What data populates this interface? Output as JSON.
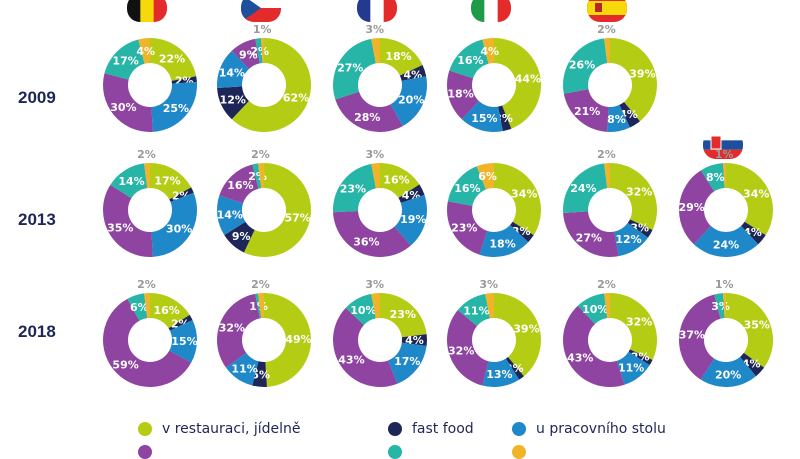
{
  "chart_data": {
    "type": "donut",
    "series_names": [
      "v restauraci, jídelně",
      "fast food",
      "u pracovního stolu",
      "",
      "",
      ""
    ],
    "colors": [
      "#b5cc14",
      "#1d2657",
      "#1e88c9",
      "#8e44a0",
      "#26b5a6",
      "#f0b429"
    ],
    "countries": [
      "belgium",
      "czech-republic",
      "france",
      "italy",
      "spain",
      "slovakia"
    ],
    "rows": [
      {
        "year": "2009",
        "charts": [
          [
            22,
            2,
            25,
            30,
            17,
            4
          ],
          [
            62,
            12,
            14,
            9,
            2,
            1
          ],
          [
            18,
            4,
            20,
            28,
            27,
            3
          ],
          [
            44,
            3,
            15,
            18,
            16,
            4
          ],
          [
            39,
            4,
            8,
            21,
            26,
            2
          ],
          null
        ]
      },
      {
        "year": "2013",
        "charts": [
          [
            17,
            2,
            30,
            35,
            14,
            2
          ],
          [
            57,
            9,
            14,
            16,
            2,
            2
          ],
          [
            16,
            4,
            19,
            36,
            23,
            3
          ],
          [
            34,
            3,
            18,
            23,
            16,
            6
          ],
          [
            32,
            3,
            12,
            27,
            24,
            2
          ],
          [
            34,
            4,
            24,
            29,
            8,
            1
          ]
        ]
      },
      {
        "year": "2018",
        "charts": [
          [
            16,
            2,
            15,
            59,
            6,
            2
          ],
          [
            49,
            5,
            11,
            32,
            1,
            2
          ],
          [
            23,
            4,
            17,
            43,
            10,
            3
          ],
          [
            39,
            2,
            13,
            32,
            11,
            3
          ],
          [
            32,
            2,
            11,
            43,
            10,
            2
          ],
          [
            35,
            4,
            20,
            37,
            3,
            1
          ]
        ]
      }
    ],
    "value_suffix": "%",
    "legend_position": "bottom"
  }
}
